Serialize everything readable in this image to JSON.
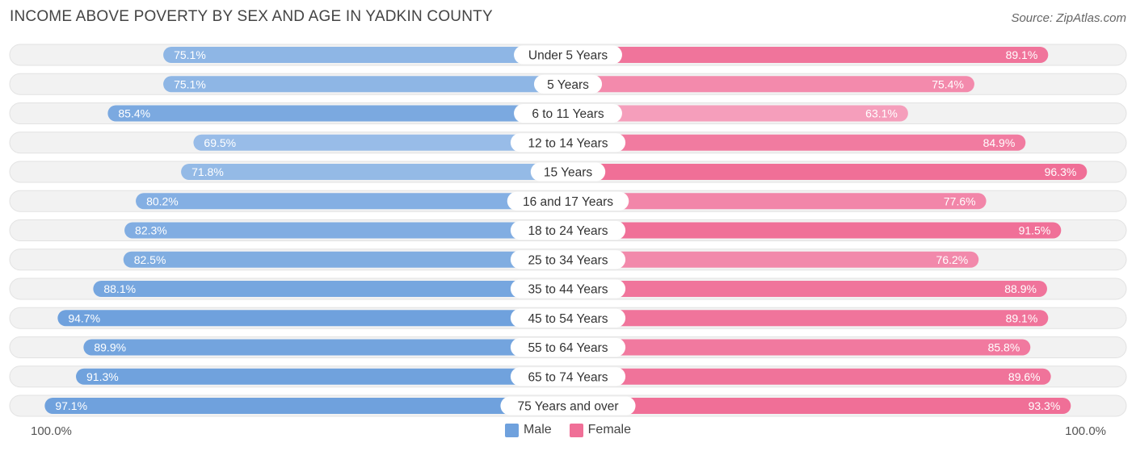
{
  "title": "INCOME ABOVE POVERTY BY SEX AND AGE IN YADKIN COUNTY",
  "source": "Source: ZipAtlas.com",
  "axis": {
    "left_label": "100.0%",
    "right_label": "100.0%"
  },
  "legend": {
    "male_label": "Male",
    "female_label": "Female"
  },
  "colors": {
    "male_strong": "#6fa1dd",
    "male_light": "#a9c8ec",
    "female_strong": "#f06f97",
    "female_light": "#f5a3bf",
    "track": "#efefef"
  },
  "chart_data": {
    "type": "bar",
    "orientation": "horizontal-diverging",
    "categories": [
      "Under 5 Years",
      "5 Years",
      "6 to 11 Years",
      "12 to 14 Years",
      "15 Years",
      "16 and 17 Years",
      "18 to 24 Years",
      "25 to 34 Years",
      "35 to 44 Years",
      "45 to 54 Years",
      "55 to 64 Years",
      "65 to 74 Years",
      "75 Years and over"
    ],
    "series": [
      {
        "name": "Male",
        "values": [
          75.1,
          75.1,
          85.4,
          69.5,
          71.8,
          80.2,
          82.3,
          82.5,
          88.1,
          94.7,
          89.9,
          91.3,
          97.1
        ]
      },
      {
        "name": "Female",
        "values": [
          89.1,
          75.4,
          63.1,
          84.9,
          96.3,
          77.6,
          91.5,
          76.2,
          88.9,
          89.1,
          85.8,
          89.6,
          93.3
        ]
      }
    ],
    "xlim": [
      0,
      100
    ],
    "unit": "%"
  }
}
